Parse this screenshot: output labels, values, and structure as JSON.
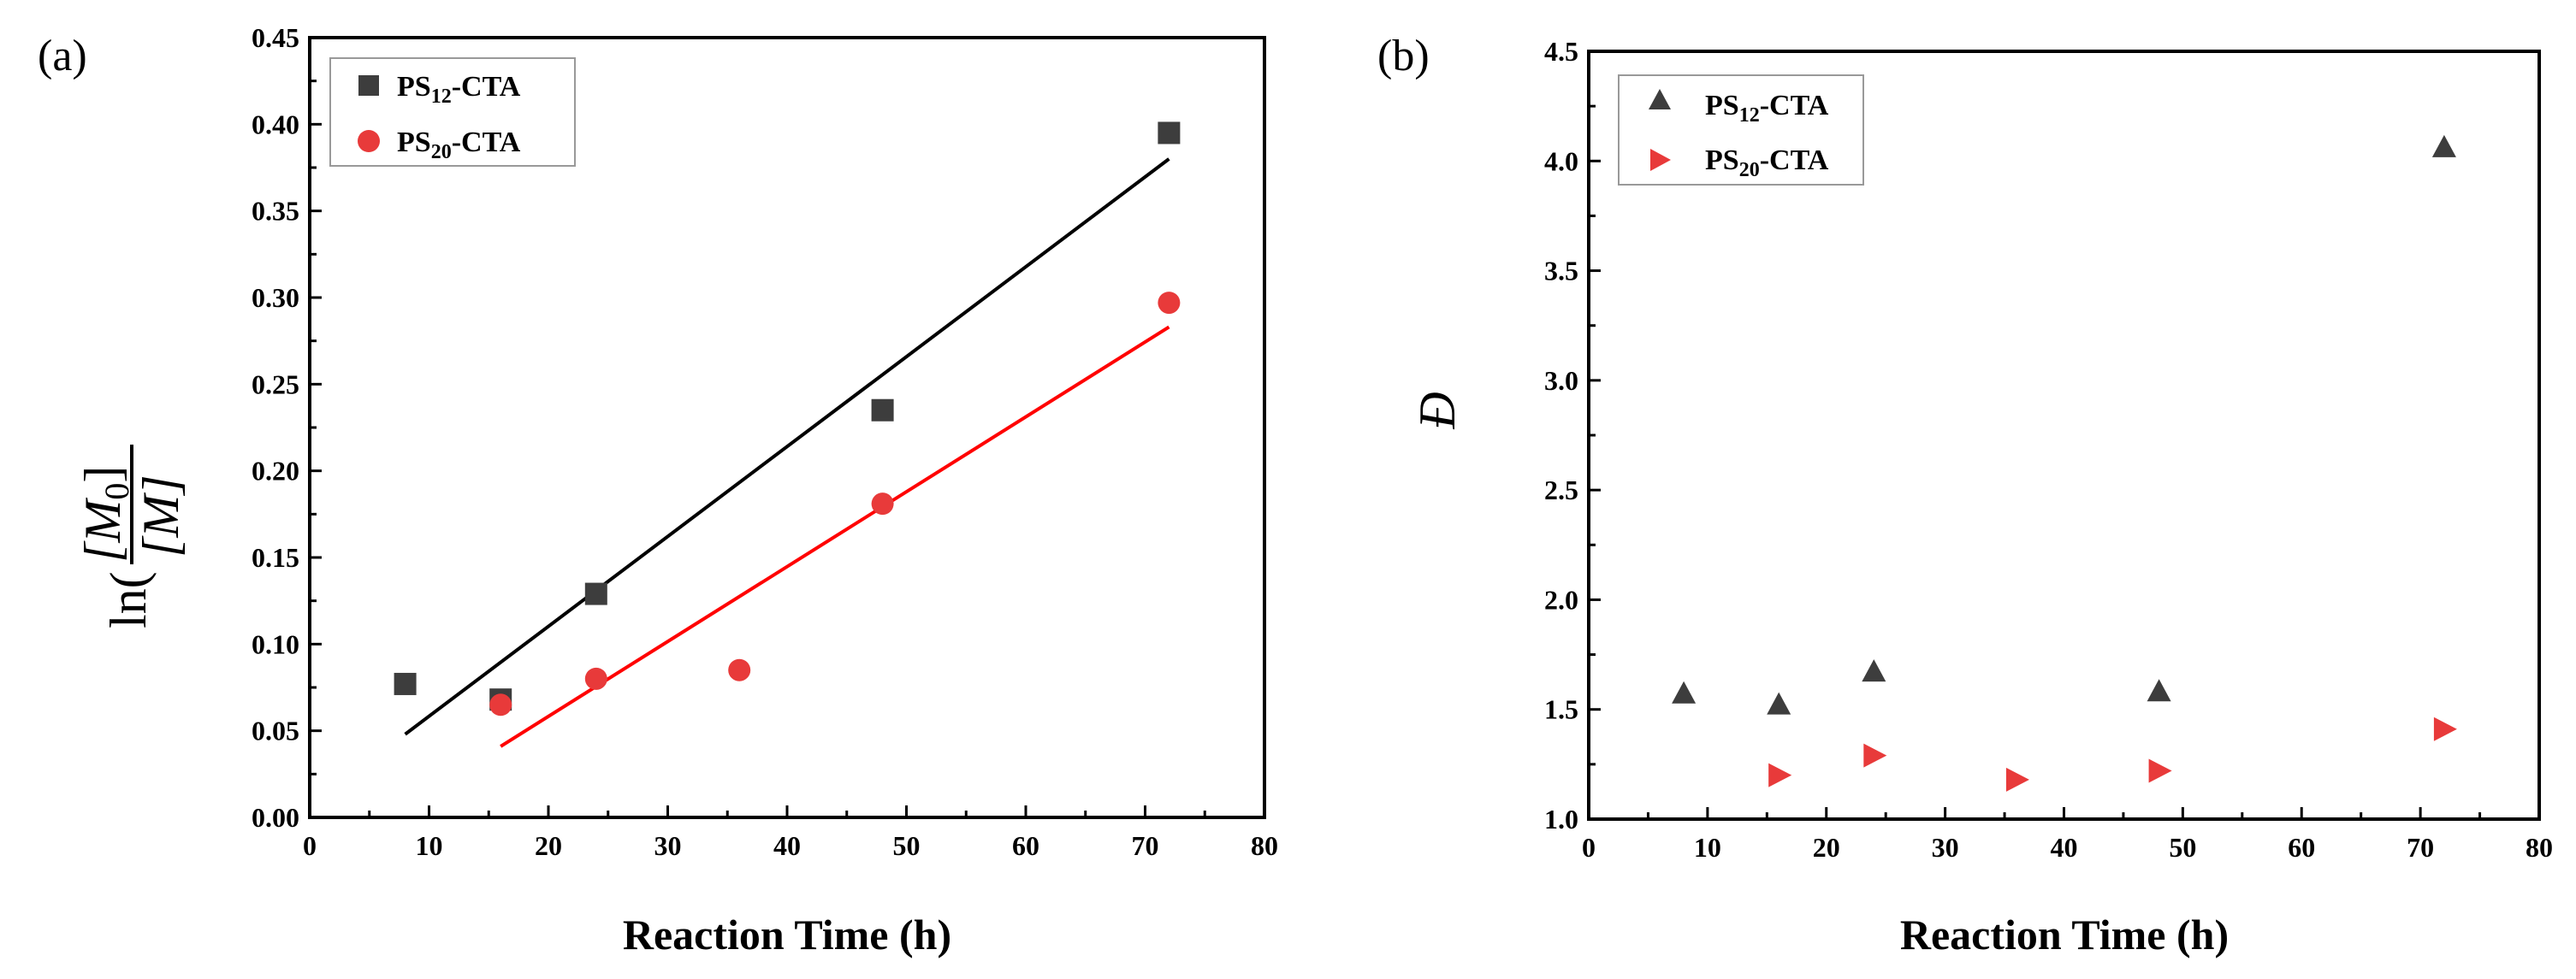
{
  "chart_data": [
    {
      "type": "scatter",
      "panel_label": "(a)",
      "xlabel": "Reaction Time (h)",
      "ylabel": {
        "prefix": "ln(",
        "numerator": "[M",
        "numerator_sub": "0",
        "numerator_close": "]",
        "denominator": "[M]"
      },
      "xlim": [
        0,
        80
      ],
      "ylim": [
        0,
        0.45
      ],
      "xticks": [
        "0",
        "10",
        "20",
        "30",
        "40",
        "50",
        "60",
        "70",
        "80"
      ],
      "yticks": [
        "0.00",
        "0.05",
        "0.10",
        "0.15",
        "0.20",
        "0.25",
        "0.30",
        "0.35",
        "0.40",
        "0.45"
      ],
      "legend_position": "top-left",
      "series": [
        {
          "name": "PS12-CTA",
          "label_main": "PS",
          "label_sub": "12",
          "label_tail": "-CTA",
          "marker": "square",
          "color": "#3d3d3d",
          "x": [
            8,
            16,
            24,
            48,
            72
          ],
          "y": [
            0.077,
            0.068,
            0.129,
            0.235,
            0.395
          ],
          "fit": {
            "x": [
              8,
              72
            ],
            "y": [
              0.048,
              0.38
            ],
            "color": "#000000"
          }
        },
        {
          "name": "PS20-CTA",
          "label_main": "PS",
          "label_sub": "20",
          "label_tail": "-CTA",
          "marker": "circle",
          "color": "#e83a3a",
          "x": [
            16,
            24,
            36,
            48,
            72
          ],
          "y": [
            0.065,
            0.08,
            0.085,
            0.181,
            0.297
          ],
          "fit": {
            "x": [
              16,
              72
            ],
            "y": [
              0.041,
              0.283
            ],
            "color": "#ff0000"
          }
        }
      ]
    },
    {
      "type": "scatter",
      "panel_label": "(b)",
      "xlabel": "Reaction Time (h)",
      "ylabel": "Đ",
      "xlim": [
        0,
        80
      ],
      "ylim": [
        1.0,
        4.5
      ],
      "xticks": [
        "0",
        "10",
        "20",
        "30",
        "40",
        "50",
        "60",
        "70",
        "80"
      ],
      "yticks": [
        "1.0",
        "1.5",
        "2.0",
        "2.5",
        "3.0",
        "3.5",
        "4.0",
        "4.5"
      ],
      "legend_position": "top-left",
      "series": [
        {
          "name": "PS12-CTA",
          "label_main": "PS",
          "label_sub": "12",
          "label_tail": "-CTA",
          "marker": "triangle-up",
          "color": "#3d3d3d",
          "x": [
            8,
            16,
            24,
            48,
            72
          ],
          "y": [
            1.57,
            1.52,
            1.67,
            1.58,
            4.06
          ]
        },
        {
          "name": "PS20-CTA",
          "label_main": "PS",
          "label_sub": "20",
          "label_tail": "-CTA",
          "marker": "triangle-right",
          "color": "#e83a3a",
          "x": [
            16,
            24,
            36,
            48,
            72
          ],
          "y": [
            1.2,
            1.29,
            1.18,
            1.22,
            1.41
          ]
        }
      ]
    }
  ]
}
